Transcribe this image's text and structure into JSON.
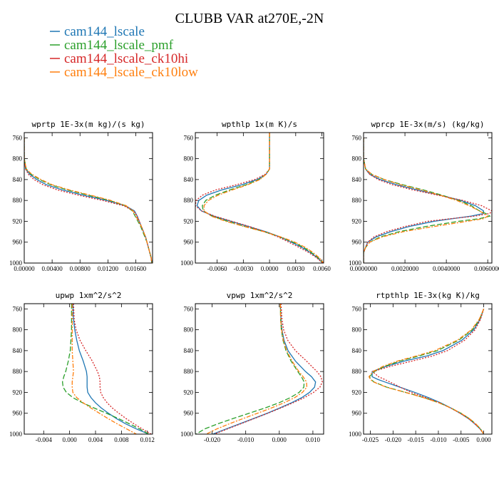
{
  "figure": {
    "title": "CLUBB VAR at270E,-2N",
    "series_colors": [
      "#1f77b4",
      "#2ca02c",
      "#d62728",
      "#ff7f0e"
    ],
    "legend": [
      "cam144_lscale",
      "cam144_lscale_pmf",
      "cam144_lscale_ck10hi",
      "cam144_lscale_ck10low"
    ]
  },
  "chart_data": [
    {
      "type": "line",
      "title": "wprtp  1E-3x(m kg)/(s kg)",
      "ylim": [
        1000,
        750
      ],
      "y_reversed": true,
      "xlim": [
        0.0,
        0.0184
      ],
      "xticks": [
        0.0,
        0.004,
        0.008,
        0.012,
        0.016
      ],
      "xtick_labels": [
        "0.00000",
        "0.00400",
        "0.00800",
        "0.01200",
        "0.01600"
      ],
      "yticks": [
        760,
        800,
        840,
        880,
        920,
        960,
        1000
      ],
      "y": [
        760,
        800,
        820,
        830,
        840,
        850,
        860,
        870,
        880,
        890,
        900,
        910,
        920,
        930,
        940,
        950,
        960,
        970,
        980,
        990,
        1000
      ],
      "series": [
        {
          "name": "cam144_lscale",
          "values": [
            0.0,
            0.0,
            0.0002,
            0.0008,
            0.0018,
            0.0032,
            0.0055,
            0.0085,
            0.0118,
            0.0145,
            0.0158,
            0.0162,
            0.0165,
            0.0168,
            0.0171,
            0.0174,
            0.0176,
            0.0178,
            0.018,
            0.0182,
            0.0183
          ]
        },
        {
          "name": "cam144_lscale_pmf",
          "values": [
            0.0,
            0.0,
            0.0003,
            0.001,
            0.0022,
            0.0038,
            0.0062,
            0.0092,
            0.0122,
            0.0145,
            0.0155,
            0.0159,
            0.0163,
            0.0167,
            0.017,
            0.0173,
            0.0176,
            0.0178,
            0.018,
            0.0182,
            0.0183
          ]
        },
        {
          "name": "cam144_lscale_ck10hi",
          "values": [
            0.0,
            0.0,
            0.0002,
            0.0006,
            0.0014,
            0.0027,
            0.0048,
            0.0078,
            0.0112,
            0.0142,
            0.0157,
            0.0162,
            0.0165,
            0.0168,
            0.0171,
            0.0174,
            0.0176,
            0.0178,
            0.018,
            0.0182,
            0.0183
          ]
        },
        {
          "name": "cam144_lscale_ck10low",
          "values": [
            0.0,
            0.0,
            0.0003,
            0.0011,
            0.0024,
            0.004,
            0.0065,
            0.0095,
            0.0124,
            0.0146,
            0.0156,
            0.016,
            0.0164,
            0.0168,
            0.0171,
            0.0174,
            0.0176,
            0.0178,
            0.018,
            0.0182,
            0.0183
          ]
        }
      ]
    },
    {
      "type": "line",
      "title": "wpthlp  1x(m K)/s",
      "ylim": [
        1000,
        750
      ],
      "y_reversed": true,
      "xlim": [
        -0.0085,
        0.0062
      ],
      "xticks": [
        -0.006,
        -0.003,
        0.0,
        0.003,
        0.006
      ],
      "xtick_labels": [
        "-0.0060",
        "-0.0030",
        "0.0000",
        "0.0030",
        "0.0060"
      ],
      "yticks": [
        760,
        800,
        840,
        880,
        920,
        960,
        1000
      ],
      "y": [
        750,
        780,
        800,
        820,
        830,
        840,
        850,
        860,
        870,
        880,
        890,
        900,
        910,
        920,
        930,
        940,
        950,
        960,
        970,
        980,
        990,
        1000
      ],
      "series": [
        {
          "name": "cam144_lscale",
          "values": [
            0.0,
            0.0,
            0.0,
            0.0,
            -0.0004,
            -0.0014,
            -0.0032,
            -0.0055,
            -0.0072,
            -0.0081,
            -0.0083,
            -0.0078,
            -0.0064,
            -0.0044,
            -0.0024,
            -0.0004,
            0.0012,
            0.0025,
            0.0037,
            0.0047,
            0.0055,
            0.0061
          ]
        },
        {
          "name": "cam144_lscale_pmf",
          "values": [
            0.0,
            0.0,
            0.0,
            0.0,
            -0.0004,
            -0.0012,
            -0.0027,
            -0.0046,
            -0.0062,
            -0.0073,
            -0.0077,
            -0.0076,
            -0.0066,
            -0.0048,
            -0.0028,
            -0.0006,
            0.0012,
            0.0027,
            0.0039,
            0.0048,
            0.0056,
            0.0061
          ]
        },
        {
          "name": "cam144_lscale_ck10hi",
          "values": [
            0.0,
            0.0,
            0.0,
            0.0,
            -0.0005,
            -0.0017,
            -0.0038,
            -0.0062,
            -0.0077,
            -0.0084,
            -0.0085,
            -0.0078,
            -0.0063,
            -0.0043,
            -0.0023,
            -0.0005,
            0.001,
            0.0022,
            0.0034,
            0.0045,
            0.0054,
            0.0061
          ]
        },
        {
          "name": "cam144_lscale_ck10low",
          "values": [
            0.0,
            0.0,
            0.0,
            0.0,
            -0.0004,
            -0.0011,
            -0.0025,
            -0.0043,
            -0.0059,
            -0.007,
            -0.0075,
            -0.0075,
            -0.0067,
            -0.005,
            -0.0029,
            -0.0006,
            0.0013,
            0.0029,
            0.0041,
            0.005,
            0.0057,
            0.0062
          ]
        }
      ]
    },
    {
      "type": "line",
      "title": "wprcp  1E-3x(m/s) (kg/kg)",
      "ylim": [
        1000,
        750
      ],
      "y_reversed": true,
      "xlim": [
        0.0,
        0.0062
      ],
      "xticks": [
        0.0,
        0.002,
        0.004,
        0.006
      ],
      "xtick_labels": [
        "0.0000000",
        "0.0020000",
        "0.0040000",
        "0.0060000"
      ],
      "yticks": [
        760,
        800,
        840,
        880,
        920,
        960,
        1000
      ],
      "y": [
        760,
        800,
        820,
        830,
        840,
        850,
        860,
        870,
        880,
        890,
        900,
        905,
        910,
        915,
        920,
        930,
        940,
        950,
        960,
        970,
        980,
        990,
        1000
      ],
      "series": [
        {
          "name": "cam144_lscale",
          "values": [
            0.0,
            0.0,
            0.0001,
            0.0003,
            0.0008,
            0.0016,
            0.0026,
            0.0037,
            0.0047,
            0.0054,
            0.0058,
            0.0058,
            0.0052,
            0.0043,
            0.0034,
            0.0022,
            0.0013,
            0.0006,
            0.0002,
            0.0001,
            0.0,
            0.0,
            0.0
          ]
        },
        {
          "name": "cam144_lscale_pmf",
          "values": [
            0.0,
            0.0,
            0.0001,
            0.0004,
            0.001,
            0.0019,
            0.0029,
            0.0038,
            0.0046,
            0.0052,
            0.0056,
            0.0059,
            0.0061,
            0.0056,
            0.0046,
            0.003,
            0.0017,
            0.0008,
            0.0003,
            0.0001,
            0.0,
            0.0,
            0.0
          ]
        },
        {
          "name": "cam144_lscale_ck10hi",
          "values": [
            0.0,
            0.0,
            0.0001,
            0.0003,
            0.0007,
            0.0014,
            0.0024,
            0.0036,
            0.0048,
            0.0057,
            0.0062,
            0.0061,
            0.0054,
            0.0042,
            0.0031,
            0.002,
            0.0011,
            0.0005,
            0.0002,
            0.0001,
            0.0,
            0.0,
            0.0
          ]
        },
        {
          "name": "cam144_lscale_ck10low",
          "values": [
            0.0,
            0.0,
            0.0001,
            0.0004,
            0.001,
            0.0018,
            0.0028,
            0.0037,
            0.0045,
            0.0051,
            0.0056,
            0.0058,
            0.006,
            0.0058,
            0.005,
            0.0034,
            0.0019,
            0.0009,
            0.0003,
            0.0001,
            0.0,
            0.0,
            0.0
          ]
        }
      ]
    },
    {
      "type": "line",
      "title": "upwp  1xm^2/s^2",
      "ylim": [
        1000,
        750
      ],
      "y_reversed": true,
      "xlim": [
        -0.007,
        0.0128
      ],
      "xticks": [
        -0.004,
        0.0,
        0.004,
        0.008,
        0.012
      ],
      "xtick_labels": [
        "-0.004",
        "0.000",
        "0.004",
        "0.008",
        "0.012"
      ],
      "yticks": [
        760,
        800,
        840,
        880,
        920,
        960,
        1000
      ],
      "y": [
        750,
        780,
        800,
        820,
        840,
        860,
        880,
        890,
        900,
        910,
        920,
        930,
        940,
        950,
        960,
        970,
        980,
        990,
        1000
      ],
      "series": [
        {
          "name": "cam144_lscale",
          "values": [
            0.0005,
            0.0006,
            0.0008,
            0.0011,
            0.0015,
            0.0021,
            0.0026,
            0.0027,
            0.0027,
            0.0027,
            0.0028,
            0.0033,
            0.004,
            0.0049,
            0.006,
            0.0072,
            0.0086,
            0.0103,
            0.0122
          ]
        },
        {
          "name": "cam144_lscale_pmf",
          "values": [
            0.0003,
            0.0003,
            0.0003,
            0.0002,
            0.0001,
            -0.0002,
            -0.0006,
            -0.0009,
            -0.0011,
            -0.001,
            -0.0005,
            0.0005,
            0.002,
            0.0038,
            0.0057,
            0.0075,
            0.0092,
            0.0108,
            0.0122
          ]
        },
        {
          "name": "cam144_lscale_ck10hi",
          "values": [
            0.0006,
            0.0007,
            0.001,
            0.0016,
            0.0025,
            0.0035,
            0.0043,
            0.0046,
            0.0047,
            0.0047,
            0.0048,
            0.0052,
            0.0058,
            0.0066,
            0.0076,
            0.0087,
            0.0099,
            0.0112,
            0.0126
          ]
        },
        {
          "name": "cam144_lscale_ck10low",
          "values": [
            0.0004,
            0.0004,
            0.0004,
            0.0004,
            0.0004,
            0.0005,
            0.0006,
            0.0005,
            0.0004,
            0.0004,
            0.0005,
            0.0011,
            0.0021,
            0.0033,
            0.0046,
            0.0059,
            0.0073,
            0.0088,
            0.0103
          ]
        }
      ]
    },
    {
      "type": "line",
      "title": "vpwp  1xm^2/s^2",
      "ylim": [
        1000,
        750
      ],
      "y_reversed": true,
      "xlim": [
        -0.025,
        0.0132
      ],
      "xticks": [
        -0.02,
        -0.01,
        0.0,
        0.01
      ],
      "xtick_labels": [
        "-0.020",
        "-0.010",
        "0.000",
        "0.010"
      ],
      "yticks": [
        760,
        800,
        840,
        880,
        920,
        960,
        1000
      ],
      "y": [
        750,
        780,
        800,
        820,
        840,
        860,
        880,
        890,
        900,
        910,
        920,
        930,
        940,
        950,
        960,
        970,
        980,
        990,
        1000
      ],
      "series": [
        {
          "name": "cam144_lscale",
          "values": [
            0.0003,
            0.0005,
            0.0008,
            0.0014,
            0.0026,
            0.0048,
            0.0078,
            0.0096,
            0.0108,
            0.0105,
            0.009,
            0.0067,
            0.0036,
            0.0001,
            -0.0036,
            -0.0076,
            -0.0117,
            -0.0158,
            -0.0198
          ]
        },
        {
          "name": "cam144_lscale_pmf",
          "values": [
            0.0003,
            0.0004,
            0.0006,
            0.0011,
            0.002,
            0.0035,
            0.0055,
            0.0066,
            0.0074,
            0.0073,
            0.0059,
            0.0033,
            -0.0001,
            -0.0043,
            -0.009,
            -0.0137,
            -0.0182,
            -0.0222,
            -0.0248
          ]
        },
        {
          "name": "cam144_lscale_ck10hi",
          "values": [
            0.0005,
            0.0008,
            0.0013,
            0.0025,
            0.0048,
            0.0081,
            0.0112,
            0.0124,
            0.0128,
            0.0121,
            0.0102,
            0.0075,
            0.0041,
            0.0004,
            -0.0034,
            -0.0074,
            -0.0114,
            -0.0154,
            -0.0194
          ]
        },
        {
          "name": "cam144_lscale_ck10low",
          "values": [
            0.0003,
            0.0004,
            0.0007,
            0.0012,
            0.0022,
            0.0038,
            0.0058,
            0.0071,
            0.0081,
            0.0082,
            0.0069,
            0.0046,
            0.0014,
            -0.0024,
            -0.0065,
            -0.0107,
            -0.0148,
            -0.0186,
            -0.0218
          ]
        }
      ]
    },
    {
      "type": "line",
      "title": "rtpthlp  1E-3x(kg K)/kg",
      "ylim": [
        1000,
        750
      ],
      "y_reversed": true,
      "xlim": [
        -0.0265,
        0.0018
      ],
      "xticks": [
        -0.025,
        -0.02,
        -0.015,
        -0.01,
        -0.005,
        0.0
      ],
      "xtick_labels": [
        "-0.025",
        "-0.020",
        "-0.015",
        "-0.010",
        "-0.005",
        "0.000"
      ],
      "yticks": [
        760,
        800,
        840,
        880,
        920,
        960,
        1000
      ],
      "y": [
        760,
        780,
        800,
        820,
        840,
        850,
        860,
        870,
        880,
        890,
        895,
        900,
        910,
        920,
        930,
        940,
        950,
        960,
        970,
        980,
        990,
        1000
      ],
      "series": [
        {
          "name": "cam144_lscale",
          "values": [
            0.0,
            -0.0008,
            -0.0022,
            -0.0048,
            -0.009,
            -0.0125,
            -0.0175,
            -0.0215,
            -0.0246,
            -0.0246,
            -0.0234,
            -0.0218,
            -0.0185,
            -0.0152,
            -0.0122,
            -0.0095,
            -0.0072,
            -0.0052,
            -0.0034,
            -0.002,
            -0.0008,
            0.0
          ]
        },
        {
          "name": "cam144_lscale_pmf",
          "values": [
            0.0,
            -0.0009,
            -0.0025,
            -0.0055,
            -0.0102,
            -0.0142,
            -0.0185,
            -0.0218,
            -0.0241,
            -0.0252,
            -0.0249,
            -0.0242,
            -0.0214,
            -0.0172,
            -0.0132,
            -0.0098,
            -0.0072,
            -0.005,
            -0.0032,
            -0.0018,
            -0.0007,
            0.0
          ]
        },
        {
          "name": "cam144_lscale_ck10hi",
          "values": [
            0.0,
            -0.0007,
            -0.0019,
            -0.0042,
            -0.008,
            -0.0112,
            -0.0158,
            -0.0205,
            -0.0245,
            -0.0232,
            -0.0219,
            -0.0207,
            -0.0184,
            -0.016,
            -0.0128,
            -0.0097,
            -0.0073,
            -0.0052,
            -0.0034,
            -0.002,
            -0.0008,
            0.0
          ]
        },
        {
          "name": "cam144_lscale_ck10low",
          "values": [
            0.0,
            -0.001,
            -0.0027,
            -0.0058,
            -0.0108,
            -0.0148,
            -0.019,
            -0.0222,
            -0.0244,
            -0.0253,
            -0.025,
            -0.0243,
            -0.0215,
            -0.0173,
            -0.0133,
            -0.0099,
            -0.0072,
            -0.005,
            -0.0032,
            -0.0018,
            -0.0007,
            0.0
          ]
        }
      ]
    }
  ]
}
